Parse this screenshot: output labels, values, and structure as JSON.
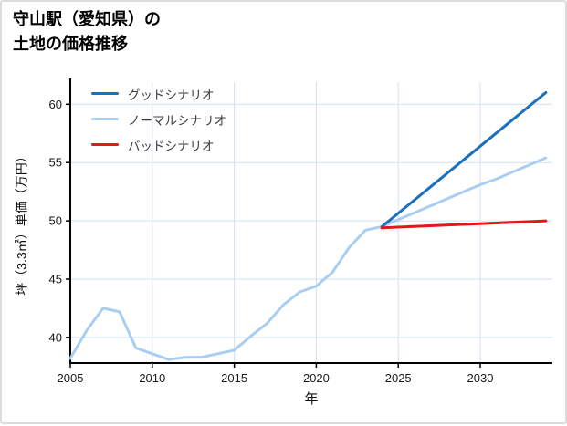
{
  "title": {
    "line1": "守山駅（愛知県）の",
    "line2": "土地の価格推移"
  },
  "chart_data": {
    "type": "line",
    "title": "守山駅（愛知県）の土地の価格推移",
    "xlabel": "年",
    "ylabel": "坪（3.3㎡）単価（万円）",
    "xlim": [
      2005,
      2034.4
    ],
    "ylim": [
      37.8,
      61.9
    ],
    "xticks": [
      2005,
      2010,
      2015,
      2020,
      2025,
      2030
    ],
    "yticks": [
      40,
      45,
      50,
      55,
      60
    ],
    "grid": true,
    "grid_color": "#d3e1f2",
    "axis_color": "#000000",
    "legend_position": "upper left",
    "series": [
      {
        "name": "グッドシナリオ",
        "color": "#1a6fbf",
        "width": 3,
        "z": 2,
        "x": [
          2024,
          2034
        ],
        "y": [
          49.5,
          61.0
        ]
      },
      {
        "name": "ノーマルシナリオ",
        "color": "#a9cef1",
        "width": 3,
        "z": 1,
        "x": [
          2005,
          2006,
          2007,
          2008,
          2009,
          2010,
          2011,
          2012,
          2013,
          2014,
          2015,
          2016,
          2017,
          2018,
          2019,
          2020,
          2021,
          2022,
          2023,
          2024,
          2025,
          2026,
          2027,
          2028,
          2029,
          2030,
          2031,
          2032,
          2033,
          2034
        ],
        "y": [
          38.2,
          40.6,
          42.5,
          42.2,
          39.1,
          38.6,
          38.1,
          38.3,
          38.3,
          38.6,
          38.9,
          40.1,
          41.2,
          42.8,
          43.9,
          44.4,
          45.6,
          47.7,
          49.2,
          49.5,
          50.1,
          50.7,
          51.3,
          51.9,
          52.5,
          53.1,
          53.6,
          54.2,
          54.8,
          55.4
        ]
      },
      {
        "name": "バッドシナリオ",
        "color": "#e81616",
        "width": 3,
        "z": 3,
        "x": [
          2024,
          2034
        ],
        "y": [
          49.4,
          50.0
        ]
      }
    ]
  }
}
